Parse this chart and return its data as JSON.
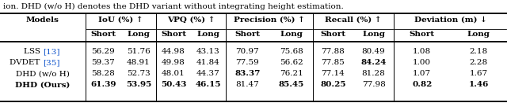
{
  "caption": "ion. DHD (w/o H) denotes the DHD variant without integrating height estimation.",
  "models": [
    "LSS",
    "[13]",
    "DVDET",
    "[35]",
    "DHD (w/o H)",
    "DHD (Ours)"
  ],
  "rows": [
    [
      "LSS",
      "[13]",
      "56.29",
      "51.76",
      "44.98",
      "43.13",
      "70.97",
      "75.68",
      "77.88",
      "80.49",
      "1.08",
      "2.18"
    ],
    [
      "DVDET",
      "[35]",
      "59.37",
      "48.91",
      "49.98",
      "41.84",
      "77.59",
      "56.62",
      "77.85",
      "84.24",
      "1.00",
      "2.28"
    ],
    [
      "DHD (w/o H)",
      "",
      "58.28",
      "52.73",
      "48.01",
      "44.37",
      "83.37",
      "76.21",
      "77.14",
      "81.28",
      "1.07",
      "1.67"
    ],
    [
      "DHD (Ours)",
      "",
      "61.39",
      "53.95",
      "50.43",
      "46.15",
      "81.47",
      "85.45",
      "80.25",
      "77.98",
      "0.82",
      "1.46"
    ]
  ],
  "bold_vals": [
    "61.39",
    "53.95",
    "50.43",
    "46.15",
    "84.24",
    "83.37",
    "80.25",
    "85.45",
    "0.82",
    "1.46"
  ],
  "group_headers": [
    "IoU (%) ↑",
    "VPQ (%) ↑",
    "Precision (%) ↑",
    "Recall (%) ↑",
    "Deviation (m) ↓"
  ],
  "bg_color": "#ffffff",
  "text_color": "#000000",
  "ref_color": "#1155cc",
  "caption_fontsize": 7.5,
  "header_fontsize": 7.5,
  "data_fontsize": 7.5,
  "thick_lw": 1.4,
  "thin_lw": 0.7,
  "vert_lw": 0.7
}
